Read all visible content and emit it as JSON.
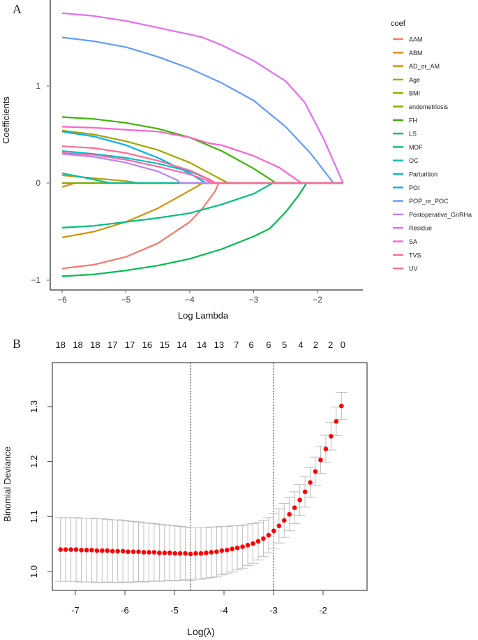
{
  "chart_data": [
    {
      "panel_label": "A",
      "type": "line",
      "title": "",
      "xlabel": "Log Lambda",
      "ylabel": "Coefficients",
      "xlim": [
        -6.2,
        -1.45
      ],
      "ylim": [
        -1.1,
        1.85
      ],
      "xticks": [
        -6,
        -5,
        -4,
        -3,
        -2
      ],
      "xtick_labels": [
        "−6",
        "−5",
        "−4",
        "−3",
        "−2"
      ],
      "yticks": [
        -1,
        0,
        1
      ],
      "ytick_labels": [
        "−1",
        "0",
        "1"
      ],
      "grid": false,
      "legend": {
        "title": "coef",
        "position": "right"
      },
      "series": [
        {
          "name": "AAM",
          "color": "#F8766D",
          "points": [
            [
              -6,
              -0.88
            ],
            [
              -5.5,
              -0.84
            ],
            [
              -5,
              -0.76
            ],
            [
              -4.5,
              -0.62
            ],
            [
              -4,
              -0.4
            ],
            [
              -3.8,
              -0.26
            ],
            [
              -3.6,
              -0.08
            ],
            [
              -3.55,
              0
            ]
          ]
        },
        {
          "name": "ABM",
          "color": "#E7861B",
          "points": [
            [
              -6,
              -0.04
            ],
            [
              -5.9,
              -0.02
            ],
            [
              -5.8,
              0
            ]
          ]
        },
        {
          "name": "AD_or_AM",
          "color": "#D39200",
          "points": [
            [
              -6,
              -0.56
            ],
            [
              -5.5,
              -0.5
            ],
            [
              -5,
              -0.4
            ],
            [
              -4.5,
              -0.26
            ],
            [
              -4.2,
              -0.15
            ],
            [
              -3.9,
              -0.04
            ],
            [
              -3.8,
              0
            ]
          ]
        },
        {
          "name": "Age",
          "color": "#C09B00",
          "points": [
            [
              -6,
              0.08
            ],
            [
              -5.5,
              0.05
            ],
            [
              -5,
              0.02
            ],
            [
              -4.8,
              0
            ]
          ]
        },
        {
          "name": "BMI",
          "color": "#A3A500",
          "points": [
            [
              -6,
              0.54
            ],
            [
              -5.5,
              0.5
            ],
            [
              -5,
              0.43
            ],
            [
              -4.5,
              0.34
            ],
            [
              -4,
              0.21
            ],
            [
              -3.6,
              0.07
            ],
            [
              -3.4,
              0
            ]
          ]
        },
        {
          "name": "endometriosis",
          "color": "#7CAE00",
          "points": [
            [
              -6,
              0
            ],
            [
              -1.6,
              0
            ]
          ]
        },
        {
          "name": "FH",
          "color": "#39B600",
          "points": [
            [
              -6,
              0.68
            ],
            [
              -5.5,
              0.66
            ],
            [
              -5,
              0.62
            ],
            [
              -4.5,
              0.56
            ],
            [
              -4,
              0.47
            ],
            [
              -3.5,
              0.33
            ],
            [
              -3,
              0.15
            ],
            [
              -2.65,
              0
            ]
          ]
        },
        {
          "name": "LS",
          "color": "#00BB4E",
          "points": [
            [
              -6,
              -0.96
            ],
            [
              -5.5,
              -0.94
            ],
            [
              -5,
              -0.9
            ],
            [
              -4.5,
              -0.85
            ],
            [
              -4,
              -0.78
            ],
            [
              -3.5,
              -0.68
            ],
            [
              -3,
              -0.55
            ],
            [
              -2.75,
              -0.47
            ],
            [
              -2.5,
              -0.3
            ],
            [
              -2.3,
              -0.13
            ],
            [
              -2.17,
              0
            ]
          ]
        },
        {
          "name": "MDF",
          "color": "#00BF7D",
          "points": [
            [
              -6,
              -0.46
            ],
            [
              -5.5,
              -0.44
            ],
            [
              -5,
              -0.4
            ],
            [
              -4.5,
              -0.36
            ],
            [
              -4,
              -0.31
            ],
            [
              -3.5,
              -0.22
            ],
            [
              -3,
              -0.11
            ],
            [
              -2.7,
              0
            ]
          ]
        },
        {
          "name": "OC",
          "color": "#00C1A3",
          "points": [
            [
              -6,
              0.1
            ],
            [
              -5.6,
              0.05
            ],
            [
              -5.25,
              0
            ]
          ]
        },
        {
          "name": "Parturition",
          "color": "#00BFC4",
          "points": [
            [
              -6,
              0.33
            ],
            [
              -5.5,
              0.3
            ],
            [
              -5,
              0.26
            ],
            [
              -4.5,
              0.2
            ],
            [
              -4,
              0.12
            ],
            [
              -3.7,
              0.04
            ],
            [
              -3.6,
              0
            ]
          ]
        },
        {
          "name": "POI",
          "color": "#00B0F6",
          "points": [
            [
              -6,
              0.53
            ],
            [
              -5.5,
              0.48
            ],
            [
              -5,
              0.39
            ],
            [
              -4.5,
              0.26
            ],
            [
              -4,
              0.1
            ],
            [
              -3.75,
              0
            ]
          ]
        },
        {
          "name": "POP_or_POC",
          "color": "#619CFF",
          "points": [
            [
              -6,
              1.5
            ],
            [
              -5.5,
              1.46
            ],
            [
              -5,
              1.4
            ],
            [
              -4.5,
              1.3
            ],
            [
              -4,
              1.18
            ],
            [
              -3.5,
              1.03
            ],
            [
              -3,
              0.85
            ],
            [
              -2.5,
              0.58
            ],
            [
              -2.1,
              0.3
            ],
            [
              -1.75,
              0
            ]
          ]
        },
        {
          "name": "Postoperative_GnRHa",
          "color": "#B983FF",
          "points": [
            [
              -6,
              0.3
            ],
            [
              -5.5,
              0.27
            ],
            [
              -5,
              0.21
            ],
            [
              -4.5,
              0.12
            ],
            [
              -4.2,
              0.03
            ],
            [
              -4.15,
              0
            ]
          ]
        },
        {
          "name": "Residue",
          "color": "#E76BF3",
          "points": [
            [
              -6,
              1.75
            ],
            [
              -5.5,
              1.72
            ],
            [
              -5,
              1.67
            ],
            [
              -4.5,
              1.6
            ],
            [
              -4,
              1.53
            ],
            [
              -3.8,
              1.5
            ],
            [
              -3.5,
              1.42
            ],
            [
              -3,
              1.26
            ],
            [
              -2.5,
              1.05
            ],
            [
              -2.2,
              0.83
            ],
            [
              -1.9,
              0.45
            ],
            [
              -1.6,
              0
            ]
          ]
        },
        {
          "name": "SA",
          "color": "#FD61D1",
          "points": [
            [
              -6,
              0.58
            ],
            [
              -5.5,
              0.57
            ],
            [
              -5,
              0.55
            ],
            [
              -4.5,
              0.53
            ],
            [
              -4,
              0.47
            ],
            [
              -3.7,
              0.41
            ],
            [
              -3.5,
              0.39
            ],
            [
              -3,
              0.28
            ],
            [
              -2.6,
              0.16
            ],
            [
              -2.25,
              0
            ]
          ]
        },
        {
          "name": "TVS",
          "color": "#FF67A4",
          "points": [
            [
              -6,
              0.31
            ],
            [
              -5.5,
              0.29
            ],
            [
              -5,
              0.24
            ],
            [
              -4.5,
              0.17
            ],
            [
              -4,
              0.09
            ],
            [
              -3.7,
              0.02
            ],
            [
              -3.65,
              0
            ]
          ]
        },
        {
          "name": "UV",
          "color": "#FF6C91",
          "points": [
            [
              -6,
              0.38
            ],
            [
              -5.5,
              0.36
            ],
            [
              -5,
              0.31
            ],
            [
              -4.5,
              0.23
            ],
            [
              -4,
              0.13
            ],
            [
              -3.7,
              0.04
            ],
            [
              -3.6,
              0
            ],
            [
              -1.6,
              0
            ]
          ]
        }
      ]
    },
    {
      "panel_label": "B",
      "type": "scatter",
      "title": "",
      "xlabel": "Log(λ)",
      "ylabel": "Binomial Deviance",
      "xlim": [
        -7.8,
        -1.35
      ],
      "ylim": [
        0.965,
        1.38
      ],
      "xticks": [
        -7,
        -6,
        -5,
        -4,
        -3,
        -2
      ],
      "xtick_labels": [
        "-7",
        "-6",
        "-5",
        "-4",
        "-3",
        "-2"
      ],
      "yticks": [
        1.0,
        1.1,
        1.2,
        1.3
      ],
      "ytick_labels": [
        "1.0",
        "1.1",
        "1.2",
        "1.3"
      ],
      "top_axis_values": [
        -7.3,
        -6.95,
        -6.6,
        -6.25,
        -5.9,
        -5.55,
        -5.2,
        -4.85,
        -4.45,
        -4.1,
        -3.75,
        -3.45,
        -3.1,
        -2.78,
        -2.45,
        -2.15,
        -1.85,
        -1.6
      ],
      "top_axis_labels": [
        "18",
        "18",
        "18",
        "17",
        "17",
        "16",
        "15",
        "14",
        "14",
        "13",
        "7",
        "6",
        "6",
        "5",
        "4",
        "2",
        "2",
        "0"
      ],
      "vlines": [
        -4.67,
        -3.0
      ],
      "grid": false,
      "point_color": "#FF0000",
      "errorbar_color": "#BEBEBE",
      "x": [
        -7.3,
        -7.195,
        -7.09,
        -6.985,
        -6.88,
        -6.775,
        -6.67,
        -6.565,
        -6.46,
        -6.355,
        -6.25,
        -6.145,
        -6.04,
        -5.935,
        -5.83,
        -5.725,
        -5.62,
        -5.515,
        -5.41,
        -5.305,
        -5.2,
        -5.095,
        -4.99,
        -4.885,
        -4.78,
        -4.675,
        -4.57,
        -4.465,
        -4.36,
        -4.255,
        -4.15,
        -4.045,
        -3.94,
        -3.835,
        -3.73,
        -3.625,
        -3.52,
        -3.415,
        -3.31,
        -3.205,
        -3.1,
        -2.995,
        -2.89,
        -2.785,
        -2.68,
        -2.575,
        -2.47,
        -2.365,
        -2.26,
        -2.155,
        -2.05,
        -1.945,
        -1.84,
        -1.735,
        -1.63
      ],
      "values": [
        1.04,
        1.04,
        1.04,
        1.04,
        1.039,
        1.039,
        1.039,
        1.038,
        1.038,
        1.038,
        1.037,
        1.037,
        1.037,
        1.036,
        1.036,
        1.036,
        1.035,
        1.035,
        1.035,
        1.034,
        1.034,
        1.034,
        1.033,
        1.033,
        1.033,
        1.032,
        1.033,
        1.033,
        1.034,
        1.035,
        1.036,
        1.038,
        1.039,
        1.041,
        1.043,
        1.045,
        1.048,
        1.051,
        1.055,
        1.06,
        1.066,
        1.074,
        1.083,
        1.093,
        1.104,
        1.116,
        1.13,
        1.145,
        1.162,
        1.182,
        1.203,
        1.223,
        1.246,
        1.273,
        1.301
      ],
      "upper": [
        1.098,
        1.098,
        1.098,
        1.098,
        1.097,
        1.097,
        1.097,
        1.096,
        1.096,
        1.095,
        1.094,
        1.094,
        1.093,
        1.092,
        1.091,
        1.09,
        1.089,
        1.088,
        1.087,
        1.086,
        1.085,
        1.084,
        1.083,
        1.082,
        1.081,
        1.08,
        1.08,
        1.08,
        1.08,
        1.081,
        1.081,
        1.082,
        1.082,
        1.083,
        1.083,
        1.084,
        1.085,
        1.087,
        1.089,
        1.093,
        1.098,
        1.106,
        1.114,
        1.124,
        1.134,
        1.145,
        1.158,
        1.173,
        1.189,
        1.208,
        1.228,
        1.248,
        1.271,
        1.299,
        1.326
      ],
      "lower": [
        0.982,
        0.982,
        0.982,
        0.982,
        0.981,
        0.981,
        0.981,
        0.98,
        0.98,
        0.981,
        0.98,
        0.98,
        0.981,
        0.98,
        0.981,
        0.982,
        0.981,
        0.982,
        0.983,
        0.982,
        0.983,
        0.984,
        0.983,
        0.984,
        0.985,
        0.984,
        0.986,
        0.986,
        0.988,
        0.989,
        0.991,
        0.994,
        0.996,
        0.999,
        1.003,
        1.006,
        1.011,
        1.015,
        1.021,
        1.027,
        1.034,
        1.042,
        1.052,
        1.062,
        1.074,
        1.087,
        1.102,
        1.117,
        1.135,
        1.156,
        1.178,
        1.198,
        1.221,
        1.247,
        1.276
      ]
    }
  ],
  "panels": {
    "a": {
      "label": "A",
      "legend_title": "coef",
      "xlabel": "Log Lambda",
      "ylabel": "Coefficients"
    },
    "b": {
      "label": "B",
      "xlabel": "Log(λ)",
      "ylabel": "Binomial Deviance"
    }
  }
}
